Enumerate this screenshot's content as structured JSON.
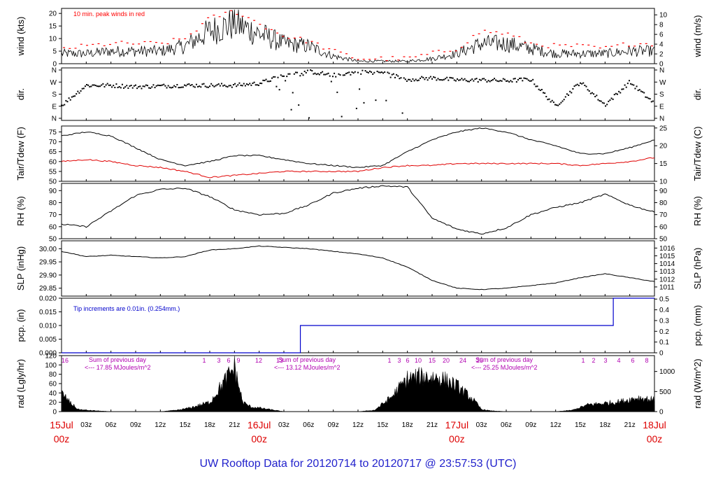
{
  "title": "UW Rooftop Data for 20120714  to  20120717 @ 23:57:53  (UTC)",
  "colors": {
    "axis": "#000000",
    "wind_peak": "#ff0000",
    "dewpoint": "#e00000",
    "precip": "#0000cc",
    "rad_annotation": "#b000b0",
    "date_label": "#dd0000",
    "title": "#2222cc"
  },
  "time_axis": {
    "hours_labels": [
      "03z",
      "06z",
      "09z",
      "12z",
      "15z",
      "18z",
      "21z",
      "16Jul",
      "03z",
      "06z",
      "09z",
      "12z",
      "15z",
      "18z",
      "21z",
      "17Jul",
      "03z",
      "06z",
      "09z",
      "12z",
      "15z",
      "18z",
      "21z"
    ],
    "dates": [
      {
        "day": "15Jul",
        "time": "00z"
      },
      {
        "day": "16Jul",
        "time": "00z"
      },
      {
        "day": "17Jul",
        "time": "00z"
      },
      {
        "day": "18Jul",
        "time": "00z"
      }
    ]
  },
  "chart_data": [
    {
      "type": "line",
      "panel": "wind",
      "ylabel_left": "wind (kts)",
      "ylabel_right": "wind (m/s)",
      "ylim": [
        0,
        22
      ],
      "yticks_left": [
        "0",
        "5",
        "10",
        "15",
        "20"
      ],
      "yticks_right": [
        "0",
        "2",
        "4",
        "6",
        "8",
        "10"
      ],
      "annotation": "10 min. peak winds in red",
      "x_hours": [
        0,
        3,
        6,
        9,
        12,
        15,
        18,
        21,
        24,
        27,
        30,
        33,
        36,
        39,
        42,
        45,
        48,
        51,
        54,
        57,
        60,
        63,
        66,
        69,
        72
      ],
      "series": [
        {
          "values": [
            4,
            4,
            5,
            5,
            5,
            7,
            13,
            16,
            12,
            8,
            7,
            3,
            1,
            1,
            1,
            2,
            4,
            8,
            8,
            6,
            4,
            4,
            4,
            5,
            5
          ]
        },
        {
          "values": [
            6,
            7,
            8,
            8,
            8,
            10,
            18,
            21,
            16,
            11,
            9,
            5,
            2,
            2,
            2,
            4,
            6,
            13,
            12,
            8,
            7,
            7,
            6,
            8,
            8
          ]
        }
      ]
    },
    {
      "type": "scatter",
      "panel": "dir",
      "ylabel_left": "dir.",
      "ylabel_right": "dir.",
      "yticks_left": [
        "N",
        "E",
        "S",
        "W",
        "N"
      ],
      "yticks_right": [
        "N",
        "E",
        "S",
        "W",
        "N"
      ],
      "ylim": [
        0,
        360
      ],
      "x_hours": [
        0,
        3,
        6,
        9,
        12,
        15,
        18,
        21,
        24,
        27,
        30,
        33,
        36,
        39,
        42,
        45,
        48,
        51,
        54,
        57,
        60,
        63,
        66,
        69,
        72
      ],
      "values": [
        95,
        245,
        245,
        235,
        240,
        245,
        245,
        245,
        260,
        320,
        350,
        320,
        345,
        340,
        290,
        300,
        285,
        285,
        280,
        290,
        90,
        270,
        100,
        270,
        110
      ]
    },
    {
      "type": "line",
      "panel": "temp",
      "ylabel_left": "Tair/Tdew (F)",
      "ylabel_right": "Tair/Tdew (C)",
      "ylim": [
        50,
        78
      ],
      "yticks_left": [
        "50",
        "55",
        "60",
        "65",
        "70",
        "75"
      ],
      "yticks_right": [
        "10",
        "15",
        "20",
        "25"
      ],
      "x_hours": [
        0,
        3,
        6,
        9,
        12,
        15,
        18,
        21,
        24,
        27,
        30,
        33,
        36,
        39,
        42,
        45,
        48,
        51,
        54,
        57,
        60,
        63,
        66,
        69,
        72
      ],
      "series": [
        {
          "values": [
            73,
            75,
            73,
            67,
            61,
            58,
            60,
            63,
            63,
            61,
            59,
            58,
            57,
            58,
            65,
            71,
            75,
            77,
            75,
            71,
            68,
            64,
            64,
            67,
            71
          ]
        },
        {
          "values": [
            60,
            61,
            60,
            58,
            57,
            55,
            52,
            53,
            54,
            55,
            55,
            55,
            55,
            57,
            58,
            58,
            59,
            59,
            59,
            59,
            59,
            58,
            59,
            60,
            62
          ]
        }
      ]
    },
    {
      "type": "line",
      "panel": "rh",
      "ylabel_left": "RH (%)",
      "ylabel_right": "RH (%)",
      "ylim": [
        50,
        96
      ],
      "yticks_left": [
        "50",
        "60",
        "70",
        "80",
        "90"
      ],
      "yticks_right": [
        "50",
        "60",
        "70",
        "80",
        "90"
      ],
      "x_hours": [
        0,
        3,
        6,
        9,
        12,
        15,
        18,
        21,
        24,
        27,
        30,
        33,
        36,
        39,
        42,
        45,
        48,
        51,
        54,
        57,
        60,
        63,
        66,
        69,
        72
      ],
      "values": [
        62,
        60,
        73,
        86,
        91,
        92,
        85,
        74,
        70,
        71,
        78,
        88,
        92,
        94,
        93,
        67,
        58,
        54,
        59,
        70,
        76,
        80,
        87,
        78,
        72
      ]
    },
    {
      "type": "line",
      "panel": "slp",
      "ylabel_left": "SLP (inHg)",
      "ylabel_right": "SLP (hPa)",
      "ylim": [
        29.82,
        30.03
      ],
      "yticks_left": [
        "29.85",
        "29.90",
        "29.95",
        "30.00"
      ],
      "yticks_right": [
        "1011",
        "1012",
        "1013",
        "1014",
        "1015",
        "1016"
      ],
      "x_hours": [
        0,
        3,
        6,
        9,
        12,
        15,
        18,
        21,
        24,
        27,
        30,
        33,
        36,
        39,
        42,
        45,
        48,
        51,
        54,
        57,
        60,
        63,
        66,
        69,
        72
      ],
      "values": [
        29.99,
        29.97,
        29.975,
        29.97,
        29.965,
        29.97,
        29.995,
        30.0,
        30.01,
        30.005,
        30.0,
        29.99,
        29.98,
        29.965,
        29.93,
        29.88,
        29.85,
        29.845,
        29.85,
        29.86,
        29.87,
        29.89,
        29.905,
        29.89,
        29.875
      ]
    },
    {
      "type": "line",
      "panel": "pcp",
      "ylabel_left": "pcp. (in)",
      "ylabel_right": "pcp. (mm)",
      "ylim": [
        0,
        0.02
      ],
      "yticks_left": [
        "0.000",
        "0.005",
        "0.010",
        "0.015",
        "0.020"
      ],
      "yticks_right": [
        "0",
        "0.1",
        "0.2",
        "0.3",
        "0.4",
        "0.5"
      ],
      "annotation": "Tip increments are 0.01in. (0.254mm.)",
      "steps": [
        {
          "hour": 0,
          "value": 0.0
        },
        {
          "hour": 29,
          "value": 0.01
        },
        {
          "hour": 67,
          "value": 0.02
        }
      ]
    },
    {
      "type": "area",
      "panel": "rad",
      "ylabel_left": "rad (Lgly/hr)",
      "ylabel_right": "rad (W/m^2)",
      "ylim": [
        0,
        120
      ],
      "yticks_left": [
        "0",
        "20",
        "40",
        "60",
        "80",
        "100",
        "120"
      ],
      "yticks_right": [
        "0",
        "500",
        "1000"
      ],
      "sums": [
        {
          "label": "Sum of previous day",
          "value": "<--- 17.85 MJoules/m^2"
        },
        {
          "label": "Sum of previous day",
          "value": "<--- 13.12 MJoules/m^2"
        },
        {
          "label": "Sum of previous day",
          "value": "<--- 25.25 MJoules/m^2"
        }
      ],
      "day_labels": [
        [
          "16",
          "1",
          "3",
          "6",
          "9",
          "12"
        ],
        [
          "13",
          "1",
          "3",
          "6",
          "10",
          "15",
          "20",
          "24"
        ],
        [
          "25",
          "1",
          "2",
          "3",
          "4",
          "6",
          "8"
        ]
      ],
      "x_hours": [
        0,
        1,
        2,
        3,
        6,
        9,
        12,
        14,
        15,
        16,
        17,
        18,
        19,
        20,
        21,
        22,
        23,
        24,
        27,
        30,
        36,
        38,
        40,
        42,
        44,
        46,
        48,
        50,
        51,
        52,
        54,
        57,
        60,
        62,
        64,
        66,
        68,
        70,
        72
      ],
      "values": [
        40,
        20,
        5,
        3,
        0,
        0,
        0,
        3,
        6,
        10,
        15,
        20,
        45,
        70,
        95,
        20,
        10,
        8,
        0,
        0,
        0,
        3,
        30,
        70,
        75,
        72,
        55,
        25,
        5,
        2,
        0,
        0,
        0,
        3,
        15,
        18,
        22,
        30,
        25
      ]
    }
  ]
}
